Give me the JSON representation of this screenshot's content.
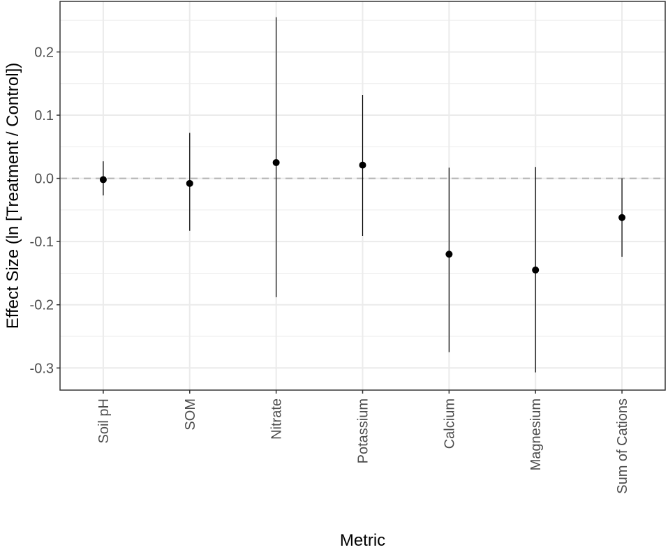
{
  "chart_data": {
    "type": "scatter",
    "subtype": "point-with-interval",
    "xlabel": "Metric",
    "ylabel": "Effect Size (ln [Treatment / Control])",
    "categories": [
      "Soil pH",
      "SOM",
      "Nitrate",
      "Potassium",
      "Calcium",
      "Magnesium",
      "Sum of Cations"
    ],
    "points": [
      {
        "category": "Soil pH",
        "estimate": -0.002,
        "lower": -0.027,
        "upper": 0.027
      },
      {
        "category": "SOM",
        "estimate": -0.008,
        "lower": -0.083,
        "upper": 0.072
      },
      {
        "category": "Nitrate",
        "estimate": 0.025,
        "lower": -0.188,
        "upper": 0.255
      },
      {
        "category": "Potassium",
        "estimate": 0.021,
        "lower": -0.091,
        "upper": 0.132
      },
      {
        "category": "Calcium",
        "estimate": -0.12,
        "lower": -0.275,
        "upper": 0.017
      },
      {
        "category": "Magnesium",
        "estimate": -0.145,
        "lower": -0.307,
        "upper": 0.018
      },
      {
        "category": "Sum of Cations",
        "estimate": -0.062,
        "lower": -0.124,
        "upper": 0.0
      }
    ],
    "reference_line": {
      "y": 0,
      "style": "dashed",
      "color": "#b3b3b3"
    },
    "ylim": [
      -0.335,
      0.28
    ],
    "yticks": [
      -0.3,
      -0.2,
      -0.1,
      0.0,
      0.1,
      0.2
    ],
    "ytick_labels": [
      "-0.3",
      "-0.2",
      "-0.1",
      "0.0",
      "0.1",
      "0.2"
    ],
    "grid": true,
    "theme": "bw",
    "colors": {
      "point": "#000000",
      "errorbar": "#000000",
      "grid": "#ebebeb",
      "panel_border": "#333333"
    }
  }
}
